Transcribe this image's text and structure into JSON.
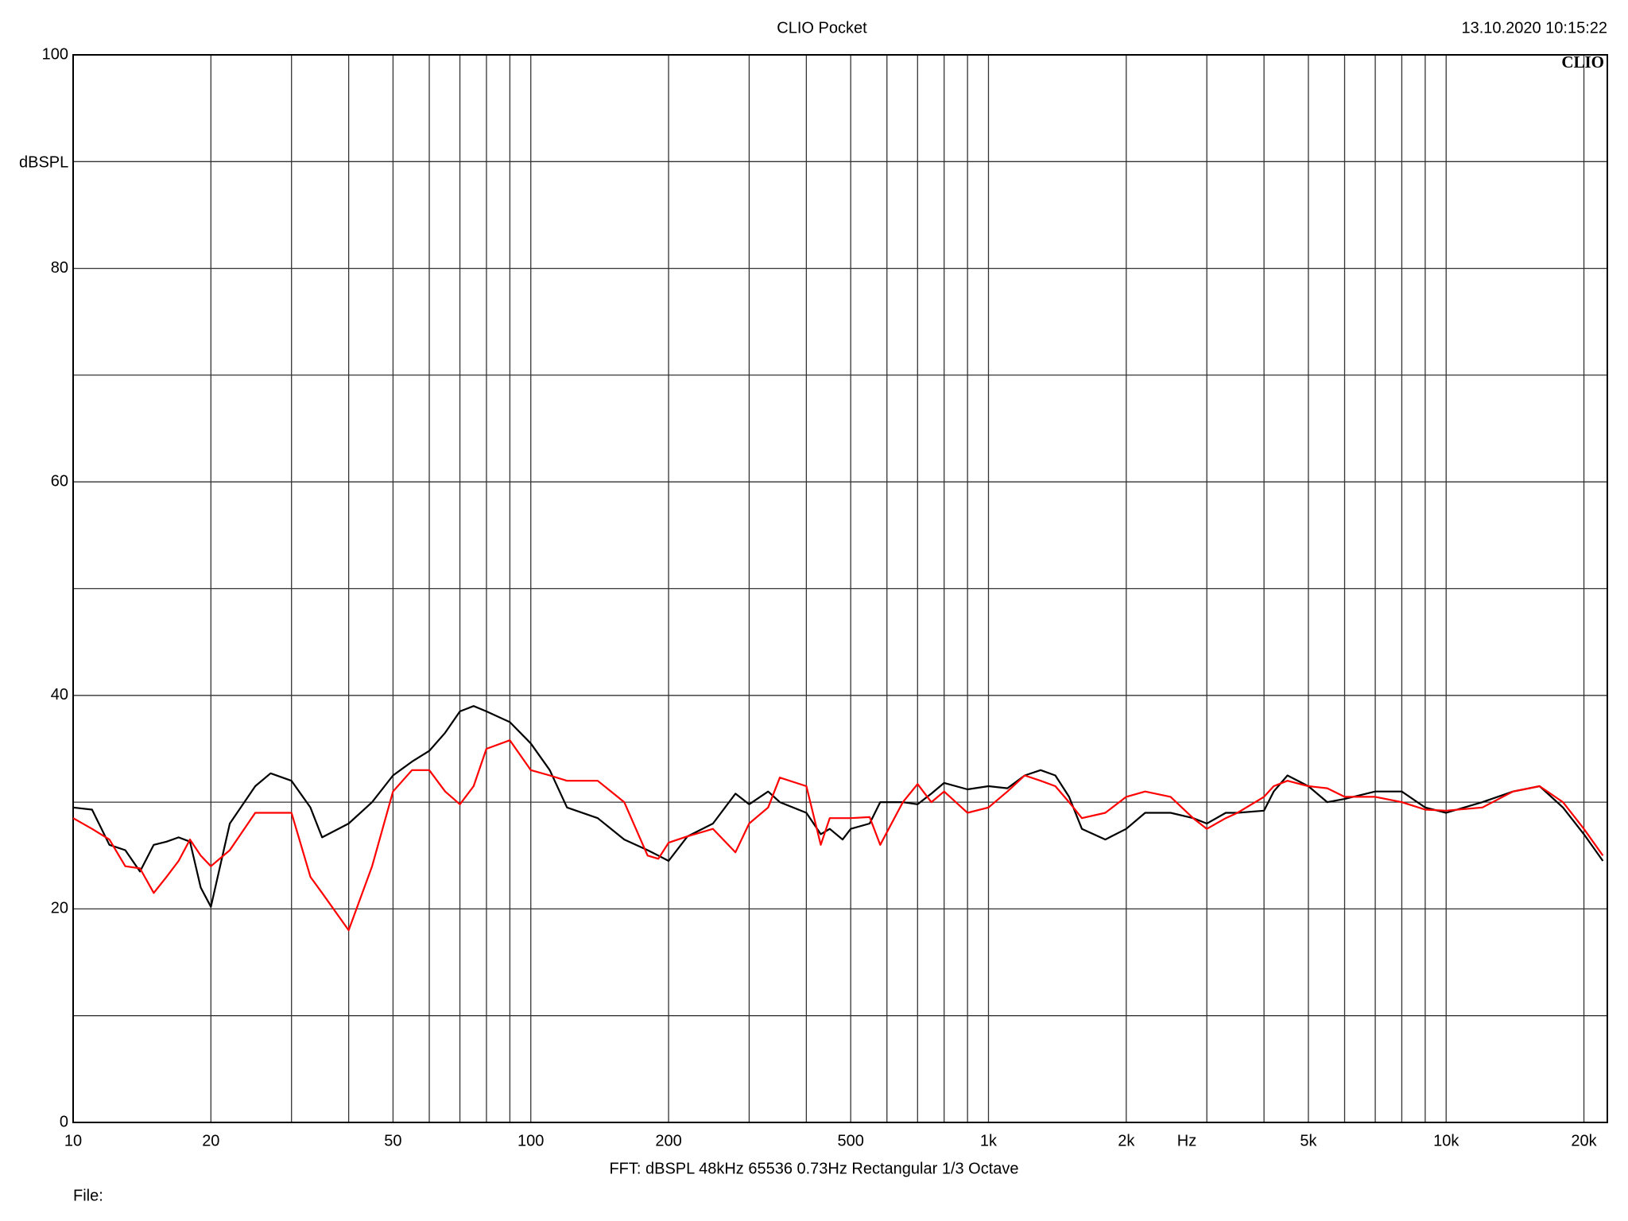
{
  "chart_data": {
    "type": "line",
    "title": "CLIO Pocket",
    "timestamp": "13.10.2020 10:15:22",
    "logo": "CLIO",
    "y_label": "dBSPL",
    "x_label": "Hz",
    "footer": "FFT:  dBSPL  48kHz  65536  0.73Hz  Rectangular  1/3 Octave",
    "file_label": "File:",
    "x_log": true,
    "grid": true,
    "xlim": [
      10,
      22500
    ],
    "ylim": [
      0,
      100
    ],
    "xticks": [
      10,
      20,
      50,
      100,
      200,
      500,
      {
        "value": 1000,
        "label": "1k"
      },
      {
        "value": 2000,
        "label": "2k"
      },
      {
        "value": 5000,
        "label": "5k"
      },
      {
        "value": 10000,
        "label": "10k"
      },
      {
        "value": 20000,
        "label": "20k"
      }
    ],
    "x_minor_grid": [
      30,
      40,
      60,
      70,
      80,
      90,
      300,
      400,
      600,
      700,
      800,
      900,
      3000,
      4000,
      6000,
      7000,
      8000,
      9000
    ],
    "yticks": [
      0,
      20,
      40,
      60,
      80,
      100
    ],
    "y_minor_grid": [
      10,
      30,
      50,
      70,
      90
    ],
    "x": [
      10,
      11,
      12,
      13,
      14,
      15,
      16,
      17,
      18,
      19,
      20,
      22,
      25,
      27,
      30,
      33,
      35,
      40,
      45,
      50,
      55,
      60,
      65,
      70,
      75,
      80,
      90,
      100,
      110,
      120,
      140,
      160,
      180,
      190,
      200,
      220,
      250,
      280,
      300,
      330,
      350,
      400,
      430,
      450,
      480,
      500,
      550,
      580,
      650,
      700,
      750,
      800,
      900,
      1000,
      1100,
      1200,
      1300,
      1400,
      1500,
      1600,
      1800,
      2000,
      2200,
      2500,
      2800,
      3000,
      3300,
      3500,
      4000,
      4200,
      4500,
      5000,
      5500,
      6000,
      7000,
      8000,
      9000,
      10000,
      12000,
      14000,
      16000,
      18000,
      20000,
      22000
    ],
    "series": [
      {
        "name": "Black trace",
        "color": "#000000",
        "values": [
          29.5,
          29.3,
          26,
          25.5,
          23.5,
          26,
          26.3,
          26.7,
          26.3,
          22,
          20.2,
          28,
          31.5,
          32.7,
          32,
          29.5,
          26.7,
          28,
          30,
          32.5,
          33.8,
          34.8,
          36.5,
          38.5,
          39,
          38.5,
          37.5,
          35.5,
          33,
          29.5,
          28.5,
          26.5,
          25.5,
          25,
          24.5,
          26.8,
          28,
          30.8,
          29.8,
          31,
          30,
          29,
          27,
          27.5,
          26.5,
          27.5,
          28,
          30,
          30,
          29.8,
          30.8,
          31.8,
          31.2,
          31.5,
          31.3,
          32.5,
          33,
          32.5,
          30.5,
          27.5,
          26.5,
          27.5,
          29,
          29,
          28.5,
          28,
          29,
          29,
          29.2,
          31,
          32.5,
          31.5,
          30,
          30.3,
          31,
          31,
          29.5,
          29,
          30,
          31,
          31.5,
          29.5,
          27,
          24.5
        ]
      },
      {
        "name": "Red trace",
        "color": "#ff0000",
        "values": [
          28.5,
          27.5,
          26.5,
          24,
          23.8,
          21.5,
          23,
          24.5,
          26.5,
          25,
          24,
          25.5,
          29,
          29,
          29,
          23,
          21.5,
          18,
          24,
          31,
          33,
          33,
          31,
          29.8,
          31.5,
          35,
          35.8,
          33,
          32.5,
          32,
          32,
          30,
          25,
          24.7,
          26.2,
          26.8,
          27.5,
          25.3,
          28,
          29.5,
          32.3,
          31.5,
          26,
          28.5,
          28.5,
          28.5,
          28.6,
          26,
          30,
          31.7,
          30,
          31,
          29,
          29.5,
          31,
          32.5,
          32,
          31.5,
          30,
          28.5,
          29,
          30.5,
          31,
          30.5,
          28.5,
          27.5,
          28.5,
          29,
          30.5,
          31.5,
          32,
          31.5,
          31.3,
          30.5,
          30.5,
          30,
          29.3,
          29.2,
          29.5,
          31,
          31.5,
          30,
          27.5,
          25
        ]
      }
    ]
  }
}
